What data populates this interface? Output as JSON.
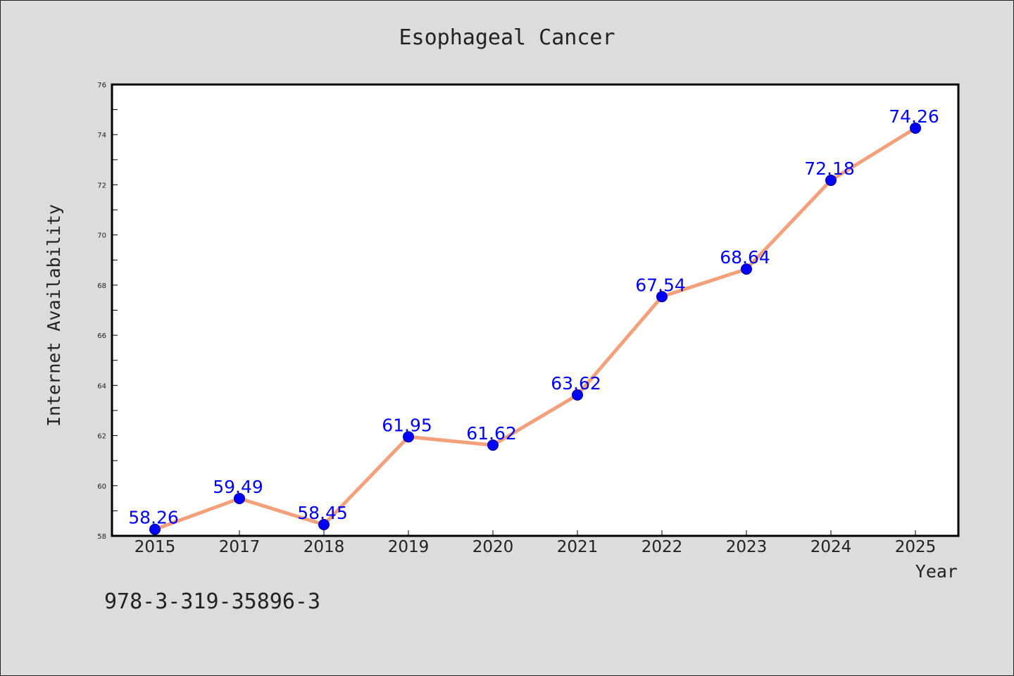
{
  "chart_data": {
    "type": "line",
    "title": "Esophageal Cancer",
    "xlabel": "Year",
    "ylabel": "Internet Availability",
    "categories": [
      "2015",
      "2017",
      "2018",
      "2019",
      "2020",
      "2021",
      "2022",
      "2023",
      "2024",
      "2025"
    ],
    "series": [
      {
        "values": [
          58.26,
          59.49,
          58.45,
          61.95,
          61.62,
          63.62,
          67.54,
          68.64,
          72.18,
          74.26
        ],
        "color": "#f4a07a",
        "marker_color": "#0000ff"
      }
    ],
    "data_labels": [
      "58.26",
      "59.49",
      "58.45",
      "61.95",
      "61.62",
      "63.62",
      "67.54",
      "68.64",
      "72.18",
      "74.26"
    ],
    "data_label_color": "#0000ff",
    "ylim": [
      58,
      76
    ],
    "yticks": [
      "58",
      "60",
      "62",
      "64",
      "66",
      "68",
      "70",
      "72",
      "74",
      "76"
    ],
    "grid": false,
    "legend": "none"
  },
  "footnote": "978-3-319-35896-3"
}
